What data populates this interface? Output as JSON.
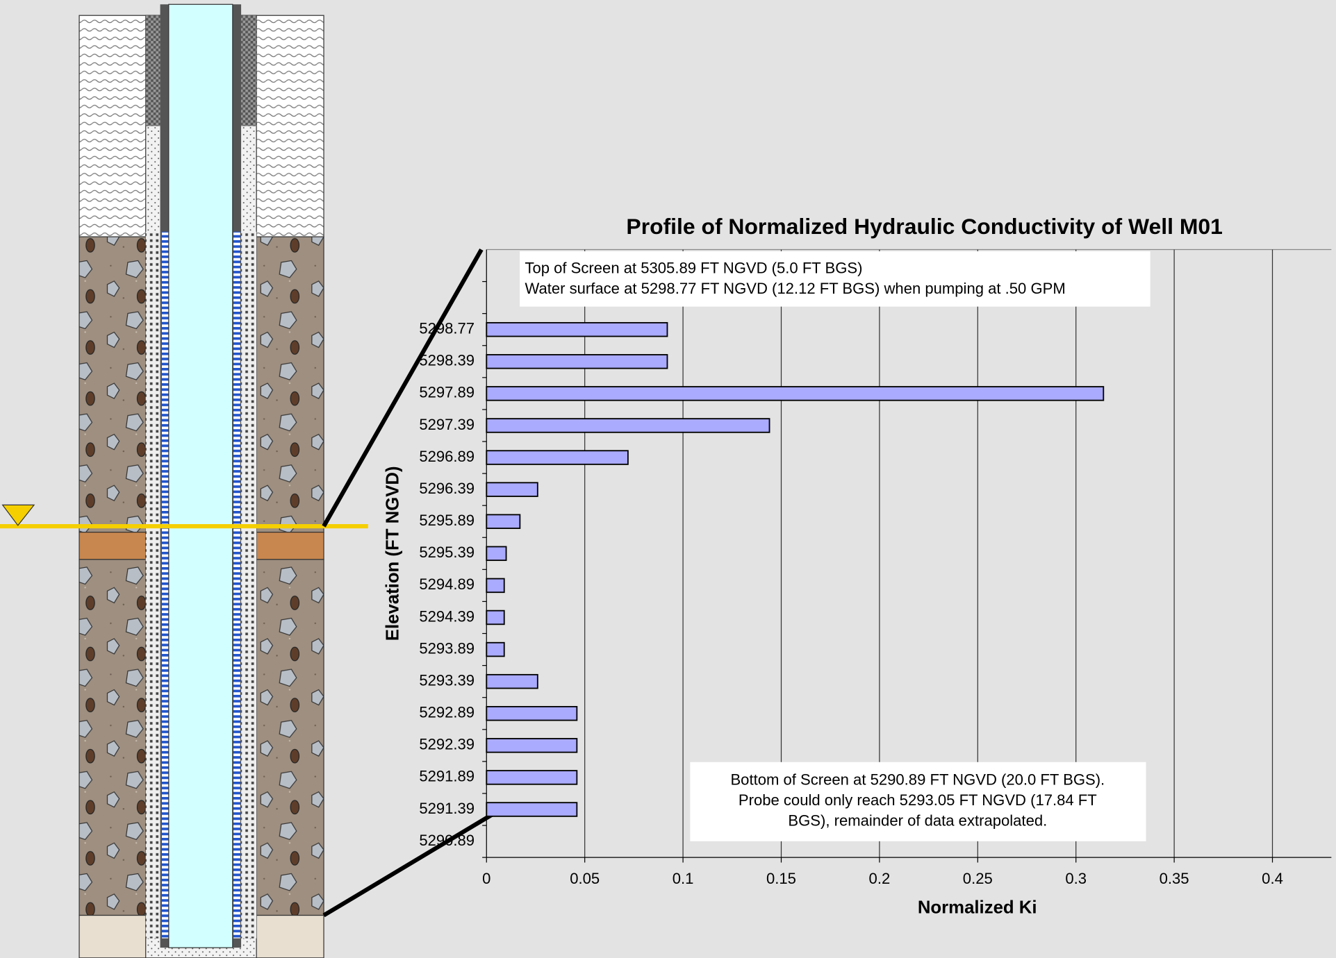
{
  "chart_data": {
    "type": "bar",
    "orientation": "horizontal",
    "title": "Profile of Normalized Hydraulic Conductivity of Well M01",
    "x_label": "Normalized Ki",
    "y_label": "Elevation (FT NGVD)",
    "categories": [
      null,
      null,
      "5298.77",
      "5298.39",
      "5297.89",
      "5297.39",
      "5296.89",
      "5296.39",
      "5295.89",
      "5295.39",
      "5294.89",
      "5294.39",
      "5293.89",
      "5293.39",
      "5292.89",
      "5292.39",
      "5291.89",
      "5291.39",
      "5290.89"
    ],
    "values": [
      null,
      null,
      0.092,
      0.092,
      0.314,
      0.144,
      0.072,
      0.026,
      0.017,
      0.01,
      0.009,
      0.009,
      0.009,
      0.026,
      0.046,
      0.046,
      0.046,
      0.046,
      null
    ],
    "color": "#aaaaff",
    "xlim": [
      0,
      0.43
    ],
    "xticks": [
      0,
      0.05,
      0.1,
      0.15,
      0.2,
      0.25,
      0.3,
      0.35,
      0.4
    ],
    "grid": true,
    "annotations": [
      [
        "Top of Screen at 5305.89 FT NGVD (5.0 FT BGS)",
        "Water surface at 5298.77 FT NGVD (12.12 FT BGS) when pumping at .50 GPM"
      ],
      [
        "Bottom of Screen at 5290.89 FT NGVD (20.0 FT BGS).",
        "Probe could only reach 5293.05 FT NGVD (17.84 FT",
        "BGS), remainder of data extrapolated."
      ]
    ]
  }
}
